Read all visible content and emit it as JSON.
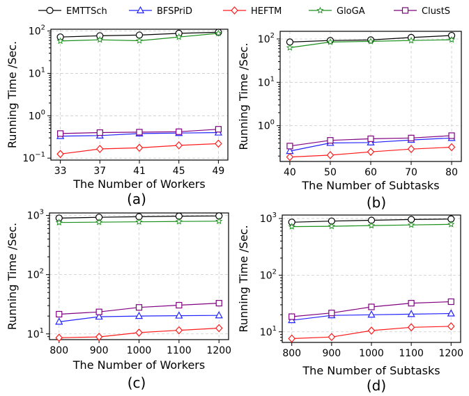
{
  "legend": [
    "EMTTSch",
    "BFSPriD",
    "HEFTM",
    "GloGA",
    "ClustS"
  ],
  "series_styles": [
    {
      "name": "EMTTSch",
      "color": "#000000",
      "marker": "circle"
    },
    {
      "name": "BFSPriD",
      "color": "#2222ff",
      "marker": "triangle"
    },
    {
      "name": "HEFTM",
      "color": "#ff1a1a",
      "marker": "diamond"
    },
    {
      "name": "GloGA",
      "color": "#1a8f1a",
      "marker": "star"
    },
    {
      "name": "ClustS",
      "color": "#800080",
      "marker": "square"
    }
  ],
  "chart_data": [
    {
      "type": "line",
      "panel_label": "(a)",
      "xlabel": "The Number of Workers",
      "ylabel": "Running Time /Sec.",
      "x": [
        33,
        37,
        41,
        45,
        49
      ],
      "y_scale": "log",
      "ylim": [
        0.09,
        110
      ],
      "yticks": [
        {
          "v": 0.1,
          "e": "-1"
        },
        {
          "v": 1,
          "e": "0"
        },
        {
          "v": 10,
          "e": "1"
        },
        {
          "v": 100,
          "e": "2"
        }
      ],
      "grid": true,
      "series": [
        {
          "name": "EMTTSch",
          "values": [
            72,
            77,
            80,
            88,
            93
          ]
        },
        {
          "name": "BFSPriD",
          "values": [
            0.33,
            0.34,
            0.38,
            0.39,
            0.4
          ]
        },
        {
          "name": "HEFTM",
          "values": [
            0.125,
            0.165,
            0.175,
            0.2,
            0.22
          ]
        },
        {
          "name": "GloGA",
          "values": [
            58,
            62,
            59,
            72,
            88
          ]
        },
        {
          "name": "ClustS",
          "values": [
            0.38,
            0.4,
            0.41,
            0.42,
            0.48
          ]
        }
      ]
    },
    {
      "type": "line",
      "panel_label": "(b)",
      "xlabel": "The Number of Subtasks",
      "ylabel": "Running Time /Sec.",
      "x": [
        40,
        50,
        60,
        70,
        80
      ],
      "y_scale": "log",
      "ylim": [
        0.15,
        150
      ],
      "yticks": [
        {
          "v": 1,
          "e": "0"
        },
        {
          "v": 10,
          "e": "1"
        },
        {
          "v": 100,
          "e": "2"
        }
      ],
      "grid": true,
      "series": [
        {
          "name": "EMTTSch",
          "values": [
            85,
            92,
            95,
            108,
            120
          ]
        },
        {
          "name": "BFSPriD",
          "values": [
            0.26,
            0.4,
            0.41,
            0.47,
            0.52
          ]
        },
        {
          "name": "HEFTM",
          "values": [
            0.19,
            0.21,
            0.25,
            0.29,
            0.32
          ]
        },
        {
          "name": "GloGA",
          "values": [
            63,
            85,
            88,
            92,
            96
          ]
        },
        {
          "name": "ClustS",
          "values": [
            0.34,
            0.46,
            0.5,
            0.52,
            0.59
          ]
        }
      ]
    },
    {
      "type": "line",
      "panel_label": "(c)",
      "xlabel": "The Number of Workers",
      "ylabel": "Running Time /Sec.",
      "x": [
        800,
        900,
        1000,
        1100,
        1200
      ],
      "y_scale": "log",
      "ylim": [
        8,
        1100
      ],
      "yticks": [
        {
          "v": 10,
          "e": "1"
        },
        {
          "v": 100,
          "e": "2"
        },
        {
          "v": 1000,
          "e": "3"
        }
      ],
      "grid": true,
      "series": [
        {
          "name": "EMTTSch",
          "values": [
            900,
            930,
            950,
            970,
            980
          ]
        },
        {
          "name": "BFSPriD",
          "values": [
            16,
            19.5,
            20,
            20.3,
            20.5
          ]
        },
        {
          "name": "HEFTM",
          "values": [
            8.6,
            8.9,
            10.5,
            11.5,
            12.5
          ]
        },
        {
          "name": "GloGA",
          "values": [
            760,
            770,
            780,
            790,
            800
          ]
        },
        {
          "name": "ClustS",
          "values": [
            21.5,
            23.5,
            28,
            30.5,
            33
          ]
        }
      ]
    },
    {
      "type": "line",
      "panel_label": "(d)",
      "xlabel": "The Number of Subtasks",
      "ylabel": "Running Time /Sec.",
      "x": [
        800,
        900,
        1000,
        1100,
        1200
      ],
      "y_scale": "log",
      "ylim": [
        6.5,
        1150
      ],
      "yticks": [
        {
          "v": 10,
          "e": "1"
        },
        {
          "v": 100,
          "e": "2"
        },
        {
          "v": 1000,
          "e": "3"
        }
      ],
      "grid": true,
      "series": [
        {
          "name": "EMTTSch",
          "values": [
            860,
            900,
            930,
            960,
            980
          ]
        },
        {
          "name": "BFSPriD",
          "values": [
            16,
            19.5,
            20,
            20.5,
            21
          ]
        },
        {
          "name": "HEFTM",
          "values": [
            7.6,
            8.1,
            10.5,
            12,
            12.5
          ]
        },
        {
          "name": "GloGA",
          "values": [
            720,
            730,
            750,
            770,
            790
          ]
        },
        {
          "name": "ClustS",
          "values": [
            18.5,
            21.5,
            27.5,
            32,
            34
          ]
        }
      ]
    }
  ]
}
